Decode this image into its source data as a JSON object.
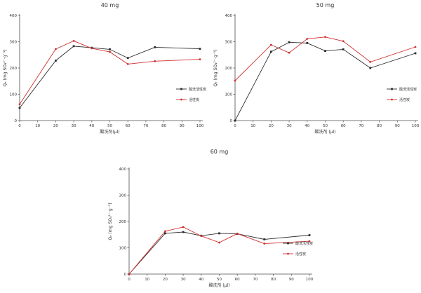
{
  "figure": {
    "background": "#ffffff",
    "text_color": "#333333",
    "axis_color": "#4d4d4d"
  },
  "chart_data": [
    {
      "type": "line",
      "title": "40 mg",
      "xlabel": "酸洗剂(μl)",
      "ylabel": "Qₑ (mg SO₄²⁻·g⁻¹)",
      "xlim": [
        0,
        100
      ],
      "ylim": [
        0,
        400
      ],
      "xticks": [
        0,
        10,
        20,
        30,
        40,
        50,
        60,
        70,
        80,
        90,
        100
      ],
      "yticks": [
        0,
        100,
        200,
        300,
        400
      ],
      "grid": false,
      "legend_position": "inside-right",
      "x": [
        0,
        20,
        30,
        40,
        50,
        60,
        75,
        100
      ],
      "series": [
        {
          "name": "酸洗活性炭",
          "color": "#2e2e2e",
          "marker": "square",
          "values": [
            48,
            228,
            283,
            277,
            271,
            238,
            279,
            273
          ]
        },
        {
          "name": "活性炭",
          "color": "#cf3030",
          "marker": "circle",
          "values": [
            62,
            272,
            303,
            275,
            261,
            215,
            226,
            233
          ]
        }
      ]
    },
    {
      "type": "line",
      "title": "50 mg",
      "xlabel": "酸洗剂 (μl)",
      "ylabel": "Qₑ (mg SO₄²⁻·g⁻¹)",
      "xlim": [
        0,
        100
      ],
      "ylim": [
        0,
        400
      ],
      "xticks": [
        0,
        10,
        20,
        30,
        40,
        50,
        60,
        70,
        80,
        90,
        100
      ],
      "yticks": [
        0,
        100,
        200,
        300,
        400
      ],
      "grid": false,
      "legend_position": "inside-right",
      "x": [
        0,
        20,
        30,
        40,
        50,
        60,
        75,
        100
      ],
      "series": [
        {
          "name": "酸洗活性炭",
          "color": "#2e2e2e",
          "marker": "square",
          "values": [
            0,
            262,
            298,
            295,
            265,
            271,
            200,
            256
          ]
        },
        {
          "name": "活性炭",
          "color": "#cf3030",
          "marker": "circle",
          "values": [
            152,
            288,
            258,
            311,
            318,
            302,
            223,
            280
          ]
        }
      ]
    },
    {
      "type": "line",
      "title": "60 mg",
      "xlabel": "酸洗剂 (μl)",
      "ylabel": "Qₑ (mg SO₄²⁻·g⁻¹)",
      "xlim": [
        0,
        100
      ],
      "ylim": [
        0,
        400
      ],
      "xticks": [
        0,
        10,
        20,
        30,
        40,
        50,
        60,
        70,
        80,
        90,
        100
      ],
      "yticks": [
        0,
        100,
        200,
        300,
        400
      ],
      "grid": false,
      "legend_position": "inside-right",
      "x": [
        0,
        20,
        30,
        40,
        50,
        60,
        75,
        100
      ],
      "series": [
        {
          "name": "酸洗活性炭",
          "color": "#2e2e2e",
          "marker": "square",
          "values": [
            0,
            155,
            160,
            146,
            155,
            153,
            132,
            148
          ]
        },
        {
          "name": "活性炭",
          "color": "#cf3030",
          "marker": "circle",
          "values": [
            0,
            163,
            179,
            145,
            120,
            154,
            116,
            125
          ]
        }
      ]
    }
  ]
}
